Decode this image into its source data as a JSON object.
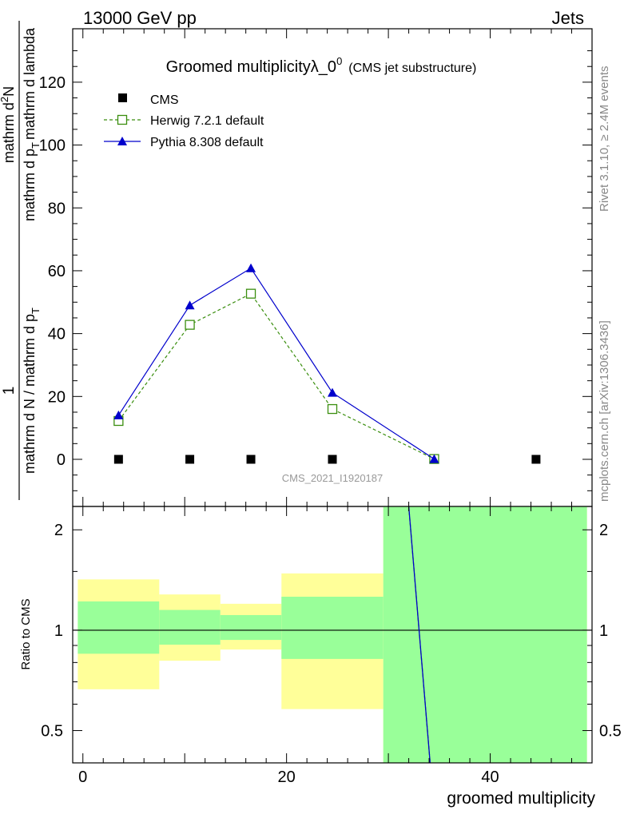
{
  "header": {
    "left_label": "13000 GeV pp",
    "right_label": "Jets"
  },
  "side_labels": {
    "rivet": "Rivet 3.1.10, ≥ 2.4M events",
    "mcplots": "mcplots.cern.ch [arXiv:1306.3436]"
  },
  "chart_data": [
    {
      "type": "line",
      "title": "Groomed multiplicityλ_0",
      "title_superscript": "0",
      "subtitle": "(CMS jet substructure)",
      "analysis_label": "CMS_2021_I1920187",
      "ylabel": "1/(mathrm d N / mathrm d p_T) · mathrm d^2N/(mathrm d p_T mathrm d lambda)",
      "ylabel_parts": {
        "numerator": "1",
        "denominator": "mathrm d N / mathrm d p",
        "denominator_sub": "T",
        "right_numerator": "mathrm d",
        "right_numerator_sup": "2",
        "right_numerator_end": "N",
        "right_denominator": "mathrm d p",
        "right_denominator_sub": "T",
        "right_denominator_end": "mathrm d lambda"
      },
      "ylim": [
        -15,
        137
      ],
      "yticks": [
        0,
        20,
        40,
        60,
        80,
        100,
        120
      ],
      "xlim": [
        -1,
        50
      ],
      "legend_position": "top-left",
      "series": [
        {
          "name": "CMS",
          "marker": "filled-square",
          "color": "#000000",
          "x": [
            3.5,
            10.5,
            16.5,
            24.5,
            34.5,
            44.5
          ],
          "y": [
            0,
            0,
            0,
            0,
            0,
            0
          ]
        },
        {
          "name": "Herwig 7.2.1 default",
          "marker": "open-square",
          "line": "dashed",
          "color": "#3a8e0e",
          "x": [
            3.5,
            10.5,
            16.5,
            24.5,
            34.5
          ],
          "y": [
            12.2,
            42.8,
            52.7,
            16.0,
            0.1
          ]
        },
        {
          "name": "Pythia 8.308 default",
          "marker": "filled-triangle",
          "line": "solid",
          "color": "#0000cc",
          "x": [
            3.5,
            10.5,
            16.5,
            24.5,
            34.5
          ],
          "y": [
            14.0,
            49.0,
            60.8,
            21.2,
            0.1
          ]
        }
      ]
    },
    {
      "type": "line",
      "ylabel": "Ratio to CMS",
      "xlabel": "groomed multiplicity",
      "yscale": "log",
      "ylim": [
        0.4,
        2.35
      ],
      "yticks": [
        0.5,
        1,
        2
      ],
      "ytick_labels": [
        "0.5",
        "1",
        "2"
      ],
      "xlim": [
        -1,
        50
      ],
      "xticks": [
        0,
        20,
        40
      ],
      "xtick_labels": [
        "0",
        "20",
        "40"
      ],
      "reference_line": 1,
      "bands": [
        {
          "x0": -0.5,
          "x1": 7.5,
          "yellow": [
            0.665,
            1.42
          ],
          "green": [
            0.85,
            1.22
          ]
        },
        {
          "x0": 7.5,
          "x1": 13.5,
          "yellow": [
            0.81,
            1.28
          ],
          "green": [
            0.905,
            1.15
          ]
        },
        {
          "x0": 13.5,
          "x1": 19.5,
          "yellow": [
            0.875,
            1.2
          ],
          "green": [
            0.935,
            1.11
          ]
        },
        {
          "x0": 19.5,
          "x1": 29.5,
          "yellow": [
            0.58,
            1.48
          ],
          "green": [
            0.82,
            1.26
          ]
        },
        {
          "x0": 29.5,
          "x1": 49.5,
          "yellow": [
            0.4,
            2.35
          ],
          "green": [
            0.4,
            2.35
          ]
        }
      ],
      "series": [
        {
          "name": "Herwig 7.2.1 default",
          "line": "dashed",
          "color": "#3a8e0e",
          "x": [
            32.0,
            34.1
          ],
          "y": [
            2.35,
            0.4
          ]
        },
        {
          "name": "Pythia 8.308 default",
          "line": "solid",
          "color": "#0000cc",
          "x": [
            32.0,
            34.1
          ],
          "y": [
            2.35,
            0.4
          ]
        }
      ]
    }
  ]
}
